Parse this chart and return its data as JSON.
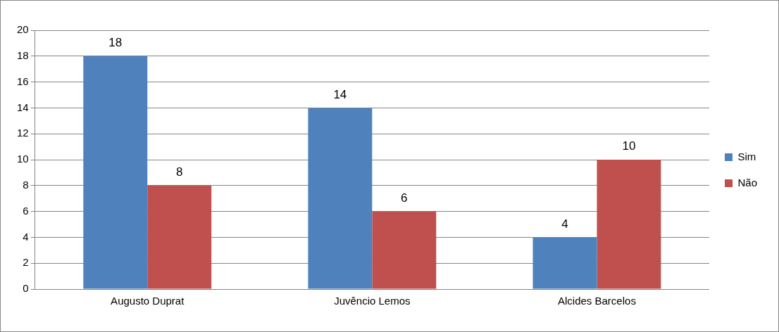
{
  "chart_data": {
    "type": "bar",
    "categories": [
      "Augusto Duprat",
      "Juvêncio Lemos",
      "Alcides Barcelos"
    ],
    "series": [
      {
        "name": "Sim",
        "color": "#4f81bd",
        "values": [
          18,
          14,
          4
        ]
      },
      {
        "name": "Não",
        "color": "#c0504d",
        "values": [
          8,
          6,
          10
        ]
      }
    ],
    "ylim": [
      0,
      20
    ],
    "yticks": [
      0,
      2,
      4,
      6,
      8,
      10,
      12,
      14,
      16,
      18,
      20
    ],
    "grid": "y",
    "legend": "right",
    "data_labels": true
  }
}
